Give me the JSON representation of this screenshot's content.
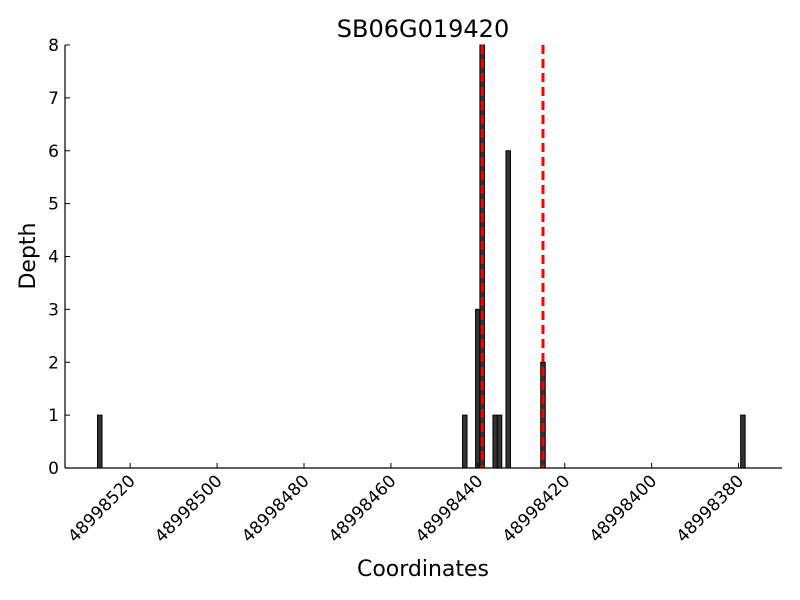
{
  "chart_data": {
    "type": "bar",
    "title": "SB06G019420",
    "xlabel": "Coordinates",
    "ylabel": "Depth",
    "xlim": [
      48998535,
      48998370
    ],
    "x_reversed": true,
    "ylim": [
      0,
      8
    ],
    "grid": false,
    "xticks": [
      48998520,
      48998500,
      48998480,
      48998460,
      48998440,
      48998420,
      48998400,
      48998380
    ],
    "yticks": [
      0,
      1,
      2,
      3,
      4,
      5,
      6,
      7,
      8
    ],
    "bars": [
      {
        "x": 48998527,
        "depth": 1
      },
      {
        "x": 48998443,
        "depth": 1
      },
      {
        "x": 48998440,
        "depth": 3
      },
      {
        "x": 48998439,
        "depth": 8
      },
      {
        "x": 48998436,
        "depth": 1
      },
      {
        "x": 48998435,
        "depth": 1
      },
      {
        "x": 48998433,
        "depth": 6
      },
      {
        "x": 48998425,
        "depth": 2
      },
      {
        "x": 48998379,
        "depth": 1
      }
    ],
    "reference_lines": [
      {
        "x": 48998439,
        "style": "dashed",
        "color": "#ff0000"
      },
      {
        "x": 48998425,
        "style": "dashed",
        "color": "#ff0000"
      }
    ],
    "colors": {
      "bar_fill": "#333333",
      "bar_edge": "#000000",
      "reference_line": "#ff0000"
    }
  }
}
